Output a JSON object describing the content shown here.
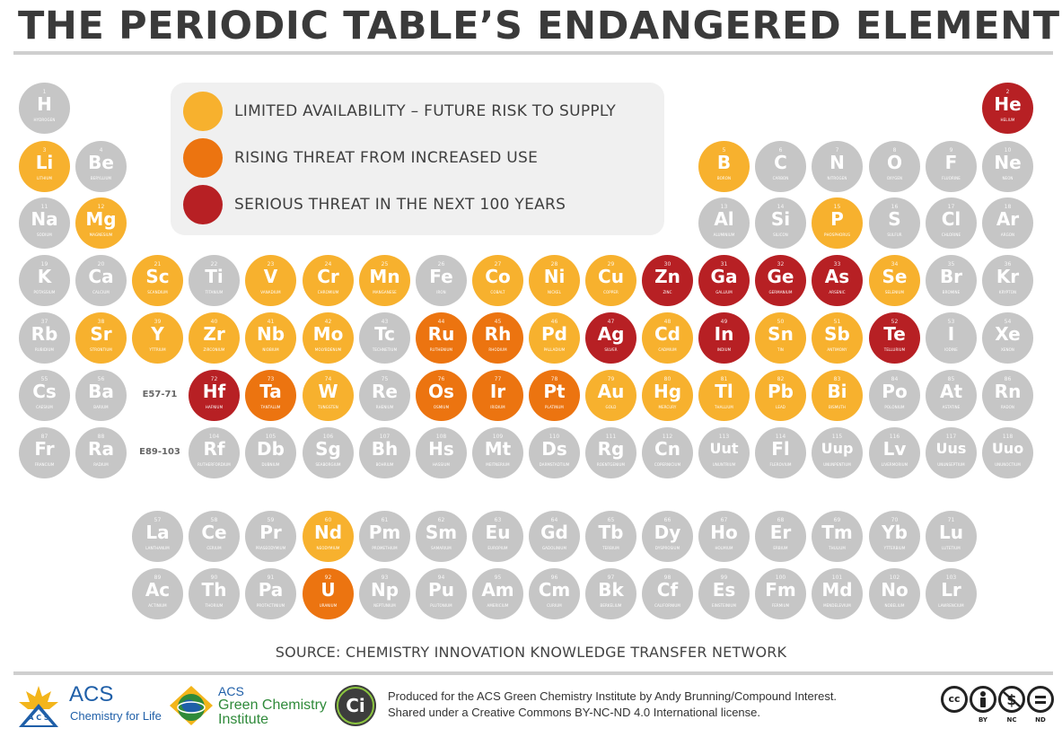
{
  "title": "THE PERIODIC TABLE’S ENDANGERED ELEMENTS",
  "colors": {
    "safe": "#c6c6c6",
    "limited": "#f7b12e",
    "rising": "#ec7410",
    "serious": "#b72024",
    "legend_bg": "#f0f0f0"
  },
  "legend": [
    {
      "category": "limited",
      "label": "LIMITED AVAILABILITY – FUTURE RISK TO SUPPLY"
    },
    {
      "category": "rising",
      "label": "RISING THREAT FROM INCREASED USE"
    },
    {
      "category": "serious",
      "label": "SERIOUS THREAT IN THE NEXT 100 YEARS"
    }
  ],
  "series_labels": {
    "lanthanides": "E57-71",
    "actinides": "E89-103"
  },
  "elements": [
    {
      "n": 1,
      "s": "H",
      "name": "HYDROGEN",
      "period": 1,
      "group": 1,
      "cat": "safe"
    },
    {
      "n": 2,
      "s": "He",
      "name": "HELIUM",
      "period": 1,
      "group": 18,
      "cat": "serious"
    },
    {
      "n": 3,
      "s": "Li",
      "name": "LITHIUM",
      "period": 2,
      "group": 1,
      "cat": "limited"
    },
    {
      "n": 4,
      "s": "Be",
      "name": "BERYLLIUM",
      "period": 2,
      "group": 2,
      "cat": "safe"
    },
    {
      "n": 5,
      "s": "B",
      "name": "BORON",
      "period": 2,
      "group": 13,
      "cat": "limited"
    },
    {
      "n": 6,
      "s": "C",
      "name": "CARBON",
      "period": 2,
      "group": 14,
      "cat": "safe"
    },
    {
      "n": 7,
      "s": "N",
      "name": "NITROGEN",
      "period": 2,
      "group": 15,
      "cat": "safe"
    },
    {
      "n": 8,
      "s": "O",
      "name": "OXYGEN",
      "period": 2,
      "group": 16,
      "cat": "safe"
    },
    {
      "n": 9,
      "s": "F",
      "name": "FLUORINE",
      "period": 2,
      "group": 17,
      "cat": "safe"
    },
    {
      "n": 10,
      "s": "Ne",
      "name": "NEON",
      "period": 2,
      "group": 18,
      "cat": "safe"
    },
    {
      "n": 11,
      "s": "Na",
      "name": "SODIUM",
      "period": 3,
      "group": 1,
      "cat": "safe"
    },
    {
      "n": 12,
      "s": "Mg",
      "name": "MAGNESIUM",
      "period": 3,
      "group": 2,
      "cat": "limited"
    },
    {
      "n": 13,
      "s": "Al",
      "name": "ALUMINIUM",
      "period": 3,
      "group": 13,
      "cat": "safe"
    },
    {
      "n": 14,
      "s": "Si",
      "name": "SILICON",
      "period": 3,
      "group": 14,
      "cat": "safe"
    },
    {
      "n": 15,
      "s": "P",
      "name": "PHOSPHORUS",
      "period": 3,
      "group": 15,
      "cat": "limited"
    },
    {
      "n": 16,
      "s": "S",
      "name": "SULFUR",
      "period": 3,
      "group": 16,
      "cat": "safe"
    },
    {
      "n": 17,
      "s": "Cl",
      "name": "CHLORINE",
      "period": 3,
      "group": 17,
      "cat": "safe"
    },
    {
      "n": 18,
      "s": "Ar",
      "name": "ARGON",
      "period": 3,
      "group": 18,
      "cat": "safe"
    },
    {
      "n": 19,
      "s": "K",
      "name": "POTASSIUM",
      "period": 4,
      "group": 1,
      "cat": "safe"
    },
    {
      "n": 20,
      "s": "Ca",
      "name": "CALCIUM",
      "period": 4,
      "group": 2,
      "cat": "safe"
    },
    {
      "n": 21,
      "s": "Sc",
      "name": "SCANDIUM",
      "period": 4,
      "group": 3,
      "cat": "limited"
    },
    {
      "n": 22,
      "s": "Ti",
      "name": "TITANIUM",
      "period": 4,
      "group": 4,
      "cat": "safe"
    },
    {
      "n": 23,
      "s": "V",
      "name": "VANADIUM",
      "period": 4,
      "group": 5,
      "cat": "limited"
    },
    {
      "n": 24,
      "s": "Cr",
      "name": "CHROMIUM",
      "period": 4,
      "group": 6,
      "cat": "limited"
    },
    {
      "n": 25,
      "s": "Mn",
      "name": "MANGANESE",
      "period": 4,
      "group": 7,
      "cat": "limited"
    },
    {
      "n": 26,
      "s": "Fe",
      "name": "IRON",
      "period": 4,
      "group": 8,
      "cat": "safe"
    },
    {
      "n": 27,
      "s": "Co",
      "name": "COBALT",
      "period": 4,
      "group": 9,
      "cat": "limited"
    },
    {
      "n": 28,
      "s": "Ni",
      "name": "NICKEL",
      "period": 4,
      "group": 10,
      "cat": "limited"
    },
    {
      "n": 29,
      "s": "Cu",
      "name": "COPPER",
      "period": 4,
      "group": 11,
      "cat": "limited"
    },
    {
      "n": 30,
      "s": "Zn",
      "name": "ZINC",
      "period": 4,
      "group": 12,
      "cat": "serious"
    },
    {
      "n": 31,
      "s": "Ga",
      "name": "GALLIUM",
      "period": 4,
      "group": 13,
      "cat": "serious"
    },
    {
      "n": 32,
      "s": "Ge",
      "name": "GERMANIUM",
      "period": 4,
      "group": 14,
      "cat": "serious"
    },
    {
      "n": 33,
      "s": "As",
      "name": "ARSENIC",
      "period": 4,
      "group": 15,
      "cat": "serious"
    },
    {
      "n": 34,
      "s": "Se",
      "name": "SELENIUM",
      "period": 4,
      "group": 16,
      "cat": "limited"
    },
    {
      "n": 35,
      "s": "Br",
      "name": "BROMINE",
      "period": 4,
      "group": 17,
      "cat": "safe"
    },
    {
      "n": 36,
      "s": "Kr",
      "name": "KRYPTON",
      "period": 4,
      "group": 18,
      "cat": "safe"
    },
    {
      "n": 37,
      "s": "Rb",
      "name": "RUBIDIUM",
      "period": 5,
      "group": 1,
      "cat": "safe"
    },
    {
      "n": 38,
      "s": "Sr",
      "name": "STRONTIUM",
      "period": 5,
      "group": 2,
      "cat": "limited"
    },
    {
      "n": 39,
      "s": "Y",
      "name": "YTTRIUM",
      "period": 5,
      "group": 3,
      "cat": "limited"
    },
    {
      "n": 40,
      "s": "Zr",
      "name": "ZIRCONIUM",
      "period": 5,
      "group": 4,
      "cat": "limited"
    },
    {
      "n": 41,
      "s": "Nb",
      "name": "NIOBIUM",
      "period": 5,
      "group": 5,
      "cat": "limited"
    },
    {
      "n": 42,
      "s": "Mo",
      "name": "MOLYBDENUM",
      "period": 5,
      "group": 6,
      "cat": "limited"
    },
    {
      "n": 43,
      "s": "Tc",
      "name": "TECHNETIUM",
      "period": 5,
      "group": 7,
      "cat": "safe"
    },
    {
      "n": 44,
      "s": "Ru",
      "name": "RUTHENIUM",
      "period": 5,
      "group": 8,
      "cat": "rising"
    },
    {
      "n": 45,
      "s": "Rh",
      "name": "RHODIUM",
      "period": 5,
      "group": 9,
      "cat": "rising"
    },
    {
      "n": 46,
      "s": "Pd",
      "name": "PALLADIUM",
      "period": 5,
      "group": 10,
      "cat": "limited"
    },
    {
      "n": 47,
      "s": "Ag",
      "name": "SILVER",
      "period": 5,
      "group": 11,
      "cat": "serious"
    },
    {
      "n": 48,
      "s": "Cd",
      "name": "CADMIUM",
      "period": 5,
      "group": 12,
      "cat": "limited"
    },
    {
      "n": 49,
      "s": "In",
      "name": "INDIUM",
      "period": 5,
      "group": 13,
      "cat": "serious"
    },
    {
      "n": 50,
      "s": "Sn",
      "name": "TIN",
      "period": 5,
      "group": 14,
      "cat": "limited"
    },
    {
      "n": 51,
      "s": "Sb",
      "name": "ANTIMONY",
      "period": 5,
      "group": 15,
      "cat": "limited"
    },
    {
      "n": 52,
      "s": "Te",
      "name": "TELLURIUM",
      "period": 5,
      "group": 16,
      "cat": "serious"
    },
    {
      "n": 53,
      "s": "I",
      "name": "IODINE",
      "period": 5,
      "group": 17,
      "cat": "safe"
    },
    {
      "n": 54,
      "s": "Xe",
      "name": "XENON",
      "period": 5,
      "group": 18,
      "cat": "safe"
    },
    {
      "n": 55,
      "s": "Cs",
      "name": "CAESIUM",
      "period": 6,
      "group": 1,
      "cat": "safe"
    },
    {
      "n": 56,
      "s": "Ba",
      "name": "BARIUM",
      "period": 6,
      "group": 2,
      "cat": "safe"
    },
    {
      "n": 72,
      "s": "Hf",
      "name": "HAFNIUM",
      "period": 6,
      "group": 4,
      "cat": "serious"
    },
    {
      "n": 73,
      "s": "Ta",
      "name": "TANTALUM",
      "period": 6,
      "group": 5,
      "cat": "rising"
    },
    {
      "n": 74,
      "s": "W",
      "name": "TUNGSTEN",
      "period": 6,
      "group": 6,
      "cat": "limited"
    },
    {
      "n": 75,
      "s": "Re",
      "name": "RHENIUM",
      "period": 6,
      "group": 7,
      "cat": "safe"
    },
    {
      "n": 76,
      "s": "Os",
      "name": "OSMIUM",
      "period": 6,
      "group": 8,
      "cat": "rising"
    },
    {
      "n": 77,
      "s": "Ir",
      "name": "IRIDIUM",
      "period": 6,
      "group": 9,
      "cat": "rising"
    },
    {
      "n": 78,
      "s": "Pt",
      "name": "PLATINUM",
      "period": 6,
      "group": 10,
      "cat": "rising"
    },
    {
      "n": 79,
      "s": "Au",
      "name": "GOLD",
      "period": 6,
      "group": 11,
      "cat": "limited"
    },
    {
      "n": 80,
      "s": "Hg",
      "name": "MERCURY",
      "period": 6,
      "group": 12,
      "cat": "limited"
    },
    {
      "n": 81,
      "s": "Tl",
      "name": "THALLIUM",
      "period": 6,
      "group": 13,
      "cat": "limited"
    },
    {
      "n": 82,
      "s": "Pb",
      "name": "LEAD",
      "period": 6,
      "group": 14,
      "cat": "limited"
    },
    {
      "n": 83,
      "s": "Bi",
      "name": "BISMUTH",
      "period": 6,
      "group": 15,
      "cat": "limited"
    },
    {
      "n": 84,
      "s": "Po",
      "name": "POLONIUM",
      "period": 6,
      "group": 16,
      "cat": "safe"
    },
    {
      "n": 85,
      "s": "At",
      "name": "ASTATINE",
      "period": 6,
      "group": 17,
      "cat": "safe"
    },
    {
      "n": 86,
      "s": "Rn",
      "name": "RADON",
      "period": 6,
      "group": 18,
      "cat": "safe"
    },
    {
      "n": 87,
      "s": "Fr",
      "name": "FRANCIUM",
      "period": 7,
      "group": 1,
      "cat": "safe"
    },
    {
      "n": 88,
      "s": "Ra",
      "name": "RADIUM",
      "period": 7,
      "group": 2,
      "cat": "safe"
    },
    {
      "n": 104,
      "s": "Rf",
      "name": "RUTHERFORDIUM",
      "period": 7,
      "group": 4,
      "cat": "safe"
    },
    {
      "n": 105,
      "s": "Db",
      "name": "DUBNIUM",
      "period": 7,
      "group": 5,
      "cat": "safe"
    },
    {
      "n": 106,
      "s": "Sg",
      "name": "SEABORGIUM",
      "period": 7,
      "group": 6,
      "cat": "safe"
    },
    {
      "n": 107,
      "s": "Bh",
      "name": "BOHRIUM",
      "period": 7,
      "group": 7,
      "cat": "safe"
    },
    {
      "n": 108,
      "s": "Hs",
      "name": "HASSIUM",
      "period": 7,
      "group": 8,
      "cat": "safe"
    },
    {
      "n": 109,
      "s": "Mt",
      "name": "MEITNERIUM",
      "period": 7,
      "group": 9,
      "cat": "safe"
    },
    {
      "n": 110,
      "s": "Ds",
      "name": "DARMSTADTIUM",
      "period": 7,
      "group": 10,
      "cat": "safe"
    },
    {
      "n": 111,
      "s": "Rg",
      "name": "ROENTGENIUM",
      "period": 7,
      "group": 11,
      "cat": "safe"
    },
    {
      "n": 112,
      "s": "Cn",
      "name": "COPERNICIUM",
      "period": 7,
      "group": 12,
      "cat": "safe"
    },
    {
      "n": 113,
      "s": "Uut",
      "name": "UNUNTRIUM",
      "period": 7,
      "group": 13,
      "cat": "safe"
    },
    {
      "n": 114,
      "s": "Fl",
      "name": "FLEROVIUM",
      "period": 7,
      "group": 14,
      "cat": "safe"
    },
    {
      "n": 115,
      "s": "Uup",
      "name": "UNUNPENTIUM",
      "period": 7,
      "group": 15,
      "cat": "safe"
    },
    {
      "n": 116,
      "s": "Lv",
      "name": "LIVERMORIUM",
      "period": 7,
      "group": 16,
      "cat": "safe"
    },
    {
      "n": 117,
      "s": "Uus",
      "name": "UNUNSEPTIUM",
      "period": 7,
      "group": 17,
      "cat": "safe"
    },
    {
      "n": 118,
      "s": "Uuo",
      "name": "UNUNOCTIUM",
      "period": 7,
      "group": 18,
      "cat": "safe"
    },
    {
      "n": 57,
      "s": "La",
      "name": "LANTHANUM",
      "period": 8,
      "group": 3,
      "cat": "safe"
    },
    {
      "n": 58,
      "s": "Ce",
      "name": "CERIUM",
      "period": 8,
      "group": 4,
      "cat": "safe"
    },
    {
      "n": 59,
      "s": "Pr",
      "name": "PRASEODYMIUM",
      "period": 8,
      "group": 5,
      "cat": "safe"
    },
    {
      "n": 60,
      "s": "Nd",
      "name": "NEODYMIUM",
      "period": 8,
      "group": 6,
      "cat": "limited"
    },
    {
      "n": 61,
      "s": "Pm",
      "name": "PROMETHIUM",
      "period": 8,
      "group": 7,
      "cat": "safe"
    },
    {
      "n": 62,
      "s": "Sm",
      "name": "SAMARIUM",
      "period": 8,
      "group": 8,
      "cat": "safe"
    },
    {
      "n": 63,
      "s": "Eu",
      "name": "EUROPIUM",
      "period": 8,
      "group": 9,
      "cat": "safe"
    },
    {
      "n": 64,
      "s": "Gd",
      "name": "GADOLINIUM",
      "period": 8,
      "group": 10,
      "cat": "safe"
    },
    {
      "n": 65,
      "s": "Tb",
      "name": "TERBIUM",
      "period": 8,
      "group": 11,
      "cat": "safe"
    },
    {
      "n": 66,
      "s": "Dy",
      "name": "DYSPROSIUM",
      "period": 8,
      "group": 12,
      "cat": "safe"
    },
    {
      "n": 67,
      "s": "Ho",
      "name": "HOLMIUM",
      "period": 8,
      "group": 13,
      "cat": "safe"
    },
    {
      "n": 68,
      "s": "Er",
      "name": "ERBIUM",
      "period": 8,
      "group": 14,
      "cat": "safe"
    },
    {
      "n": 69,
      "s": "Tm",
      "name": "THULIUM",
      "period": 8,
      "group": 15,
      "cat": "safe"
    },
    {
      "n": 70,
      "s": "Yb",
      "name": "YTTERBIUM",
      "period": 8,
      "group": 16,
      "cat": "safe"
    },
    {
      "n": 71,
      "s": "Lu",
      "name": "LUTETIUM",
      "period": 8,
      "group": 17,
      "cat": "safe"
    },
    {
      "n": 89,
      "s": "Ac",
      "name": "ACTINIUM",
      "period": 9,
      "group": 3,
      "cat": "safe"
    },
    {
      "n": 90,
      "s": "Th",
      "name": "THORIUM",
      "period": 9,
      "group": 4,
      "cat": "safe"
    },
    {
      "n": 91,
      "s": "Pa",
      "name": "PROTACTINIUM",
      "period": 9,
      "group": 5,
      "cat": "safe"
    },
    {
      "n": 92,
      "s": "U",
      "name": "URANIUM",
      "period": 9,
      "group": 6,
      "cat": "rising"
    },
    {
      "n": 93,
      "s": "Np",
      "name": "NEPTUNIUM",
      "period": 9,
      "group": 7,
      "cat": "safe"
    },
    {
      "n": 94,
      "s": "Pu",
      "name": "PLUTONIUM",
      "period": 9,
      "group": 8,
      "cat": "safe"
    },
    {
      "n": 95,
      "s": "Am",
      "name": "AMERICIUM",
      "period": 9,
      "group": 9,
      "cat": "safe"
    },
    {
      "n": 96,
      "s": "Cm",
      "name": "CURIUM",
      "period": 9,
      "group": 10,
      "cat": "safe"
    },
    {
      "n": 97,
      "s": "Bk",
      "name": "BERKELIUM",
      "period": 9,
      "group": 11,
      "cat": "safe"
    },
    {
      "n": 98,
      "s": "Cf",
      "name": "CALIFORNIUM",
      "period": 9,
      "group": 12,
      "cat": "safe"
    },
    {
      "n": 99,
      "s": "Es",
      "name": "EINSTEINIUM",
      "period": 9,
      "group": 13,
      "cat": "safe"
    },
    {
      "n": 100,
      "s": "Fm",
      "name": "FERMIUM",
      "period": 9,
      "group": 14,
      "cat": "safe"
    },
    {
      "n": 101,
      "s": "Md",
      "name": "MENDELEVIUM",
      "period": 9,
      "group": 15,
      "cat": "safe"
    },
    {
      "n": 102,
      "s": "No",
      "name": "NOBELIUM",
      "period": 9,
      "group": 16,
      "cat": "safe"
    },
    {
      "n": 103,
      "s": "Lr",
      "name": "LAWRENCIUM",
      "period": 9,
      "group": 17,
      "cat": "safe"
    }
  ],
  "source": "SOURCE: CHEMISTRY INNOVATION KNOWLEDGE TRANSFER NETWORK",
  "footer": {
    "acs_name": "ACS",
    "acs_tagline": "Chemistry for Life",
    "gci_line1": "ACS",
    "gci_line2": "Green Chemistry",
    "gci_line3": "Institute",
    "ci_mark": "Ci",
    "credit_line1": "Produced for the ACS Green Chemistry Institute by Andy Brunning/Compound Interest.",
    "credit_line2": "Shared under a Creative Commons BY-NC-ND 4.0 International license.",
    "cc_labels": [
      "BY",
      "NC",
      "ND"
    ]
  }
}
